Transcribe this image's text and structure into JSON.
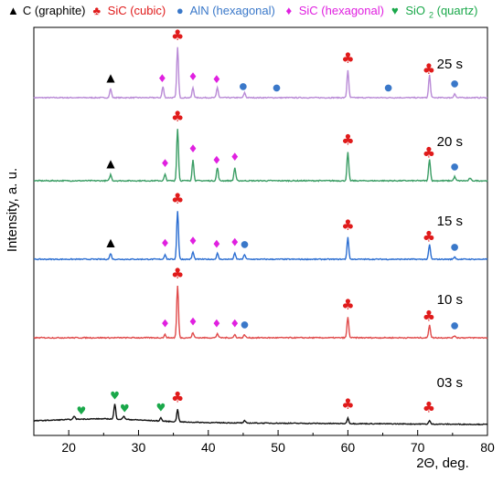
{
  "chart_data": {
    "type": "line",
    "xlabel": "2Θ, deg.",
    "ylabel": "Intensity, a. u.",
    "xlim": [
      15,
      80
    ],
    "xticks": [
      20,
      30,
      40,
      50,
      60,
      70,
      80
    ],
    "grid": false,
    "legend": {
      "placement": "top",
      "entries": [
        {
          "marker": "▲",
          "label": "C (graphite)",
          "color": "#000000"
        },
        {
          "marker": "♣",
          "label": "SiC (cubic)",
          "color": "#e01b1b"
        },
        {
          "marker": "●",
          "label": "AlN (hexagonal)",
          "color": "#3a78c9"
        },
        {
          "marker": "♦",
          "label": "SiC (hexagonal)",
          "color": "#e020e0"
        },
        {
          "marker": "♥",
          "label_main": "SiO",
          "label_sub": "2",
          "label_rest": " (quartz)",
          "color": "#1aa84a"
        }
      ]
    },
    "series": [
      {
        "name": "25 s",
        "color": "#b98ad6",
        "peaks": [
          [
            26.0,
            0.18
          ],
          [
            33.5,
            0.22
          ],
          [
            35.6,
            1.0
          ],
          [
            37.8,
            0.2
          ],
          [
            41.3,
            0.2
          ],
          [
            45.2,
            0.1
          ],
          [
            60.0,
            0.55
          ],
          [
            71.7,
            0.45
          ],
          [
            75.3,
            0.08
          ]
        ],
        "markers": [
          {
            "x": 26.0,
            "symbol": "graphite"
          },
          {
            "x": 33.4,
            "symbol": "sic_hex"
          },
          {
            "x": 35.6,
            "symbol": "sic_cubic"
          },
          {
            "x": 37.8,
            "symbol": "sic_hex"
          },
          {
            "x": 41.2,
            "symbol": "sic_hex"
          },
          {
            "x": 45.0,
            "symbol": "aln"
          },
          {
            "x": 49.8,
            "symbol": "aln"
          },
          {
            "x": 60.0,
            "symbol": "sic_cubic"
          },
          {
            "x": 65.8,
            "symbol": "aln"
          },
          {
            "x": 71.6,
            "symbol": "sic_cubic"
          },
          {
            "x": 75.3,
            "symbol": "aln"
          }
        ]
      },
      {
        "name": "20 s",
        "color": "#3a9d64",
        "peaks": [
          [
            26.0,
            0.12
          ],
          [
            33.8,
            0.12
          ],
          [
            35.6,
            1.0
          ],
          [
            37.8,
            0.4
          ],
          [
            41.3,
            0.25
          ],
          [
            43.8,
            0.25
          ],
          [
            60.0,
            0.55
          ],
          [
            71.7,
            0.42
          ],
          [
            75.3,
            0.08
          ],
          [
            77.5,
            0.05
          ]
        ],
        "markers": [
          {
            "x": 26.0,
            "symbol": "graphite"
          },
          {
            "x": 33.8,
            "symbol": "sic_hex"
          },
          {
            "x": 35.6,
            "symbol": "sic_cubic"
          },
          {
            "x": 37.8,
            "symbol": "sic_hex"
          },
          {
            "x": 41.2,
            "symbol": "sic_hex"
          },
          {
            "x": 43.8,
            "symbol": "sic_hex"
          },
          {
            "x": 60.0,
            "symbol": "sic_cubic"
          },
          {
            "x": 71.6,
            "symbol": "sic_cubic"
          },
          {
            "x": 75.3,
            "symbol": "aln"
          }
        ]
      },
      {
        "name": "15 s",
        "color": "#2a6dd1",
        "peaks": [
          [
            26.0,
            0.12
          ],
          [
            33.8,
            0.1
          ],
          [
            35.6,
            1.0
          ],
          [
            37.8,
            0.15
          ],
          [
            41.3,
            0.12
          ],
          [
            43.8,
            0.12
          ],
          [
            45.2,
            0.1
          ],
          [
            60.0,
            0.45
          ],
          [
            71.7,
            0.3
          ],
          [
            75.3,
            0.05
          ]
        ],
        "markers": [
          {
            "x": 26.0,
            "symbol": "graphite"
          },
          {
            "x": 33.8,
            "symbol": "sic_hex"
          },
          {
            "x": 35.6,
            "symbol": "sic_cubic"
          },
          {
            "x": 37.8,
            "symbol": "sic_hex"
          },
          {
            "x": 41.2,
            "symbol": "sic_hex"
          },
          {
            "x": 43.8,
            "symbol": "sic_hex"
          },
          {
            "x": 45.2,
            "symbol": "aln"
          },
          {
            "x": 60.0,
            "symbol": "sic_cubic"
          },
          {
            "x": 71.6,
            "symbol": "sic_cubic"
          },
          {
            "x": 75.3,
            "symbol": "aln"
          }
        ]
      },
      {
        "name": "10 s",
        "color": "#e04a4a",
        "peaks": [
          [
            33.8,
            0.06
          ],
          [
            35.6,
            1.0
          ],
          [
            37.8,
            0.1
          ],
          [
            41.3,
            0.08
          ],
          [
            43.8,
            0.06
          ],
          [
            45.2,
            0.06
          ],
          [
            60.0,
            0.4
          ],
          [
            71.7,
            0.25
          ],
          [
            75.3,
            0.04
          ]
        ],
        "markers": [
          {
            "x": 33.8,
            "symbol": "sic_hex"
          },
          {
            "x": 35.6,
            "symbol": "sic_cubic"
          },
          {
            "x": 37.8,
            "symbol": "sic_hex"
          },
          {
            "x": 41.2,
            "symbol": "sic_hex"
          },
          {
            "x": 43.8,
            "symbol": "sic_hex"
          },
          {
            "x": 45.2,
            "symbol": "aln"
          },
          {
            "x": 60.0,
            "symbol": "sic_cubic"
          },
          {
            "x": 71.6,
            "symbol": "sic_cubic"
          },
          {
            "x": 75.3,
            "symbol": "aln"
          }
        ]
      },
      {
        "name": "03 s",
        "color": "#111111",
        "peaks": [
          [
            20.8,
            0.12
          ],
          [
            26.6,
            0.55
          ],
          [
            27.9,
            0.12
          ],
          [
            33.2,
            0.12
          ],
          [
            35.6,
            0.45
          ],
          [
            45.2,
            0.08
          ],
          [
            60.0,
            0.2
          ],
          [
            71.7,
            0.12
          ]
        ],
        "markers": [
          {
            "x": 21.8,
            "symbol": "quartz"
          },
          {
            "x": 26.6,
            "symbol": "quartz"
          },
          {
            "x": 28.0,
            "symbol": "quartz"
          },
          {
            "x": 33.2,
            "symbol": "quartz"
          },
          {
            "x": 35.6,
            "symbol": "sic_cubic"
          },
          {
            "x": 60.0,
            "symbol": "sic_cubic"
          },
          {
            "x": 71.6,
            "symbol": "sic_cubic"
          }
        ]
      }
    ],
    "symbols": {
      "graphite": {
        "glyph": "▲",
        "color": "#000000"
      },
      "sic_cubic": {
        "glyph": "♣",
        "color": "#e01b1b"
      },
      "aln": {
        "glyph": "●",
        "color": "#3a78c9"
      },
      "sic_hex": {
        "glyph": "♦",
        "color": "#e020e0"
      },
      "quartz": {
        "glyph": "♥",
        "color": "#1aa84a"
      }
    }
  }
}
